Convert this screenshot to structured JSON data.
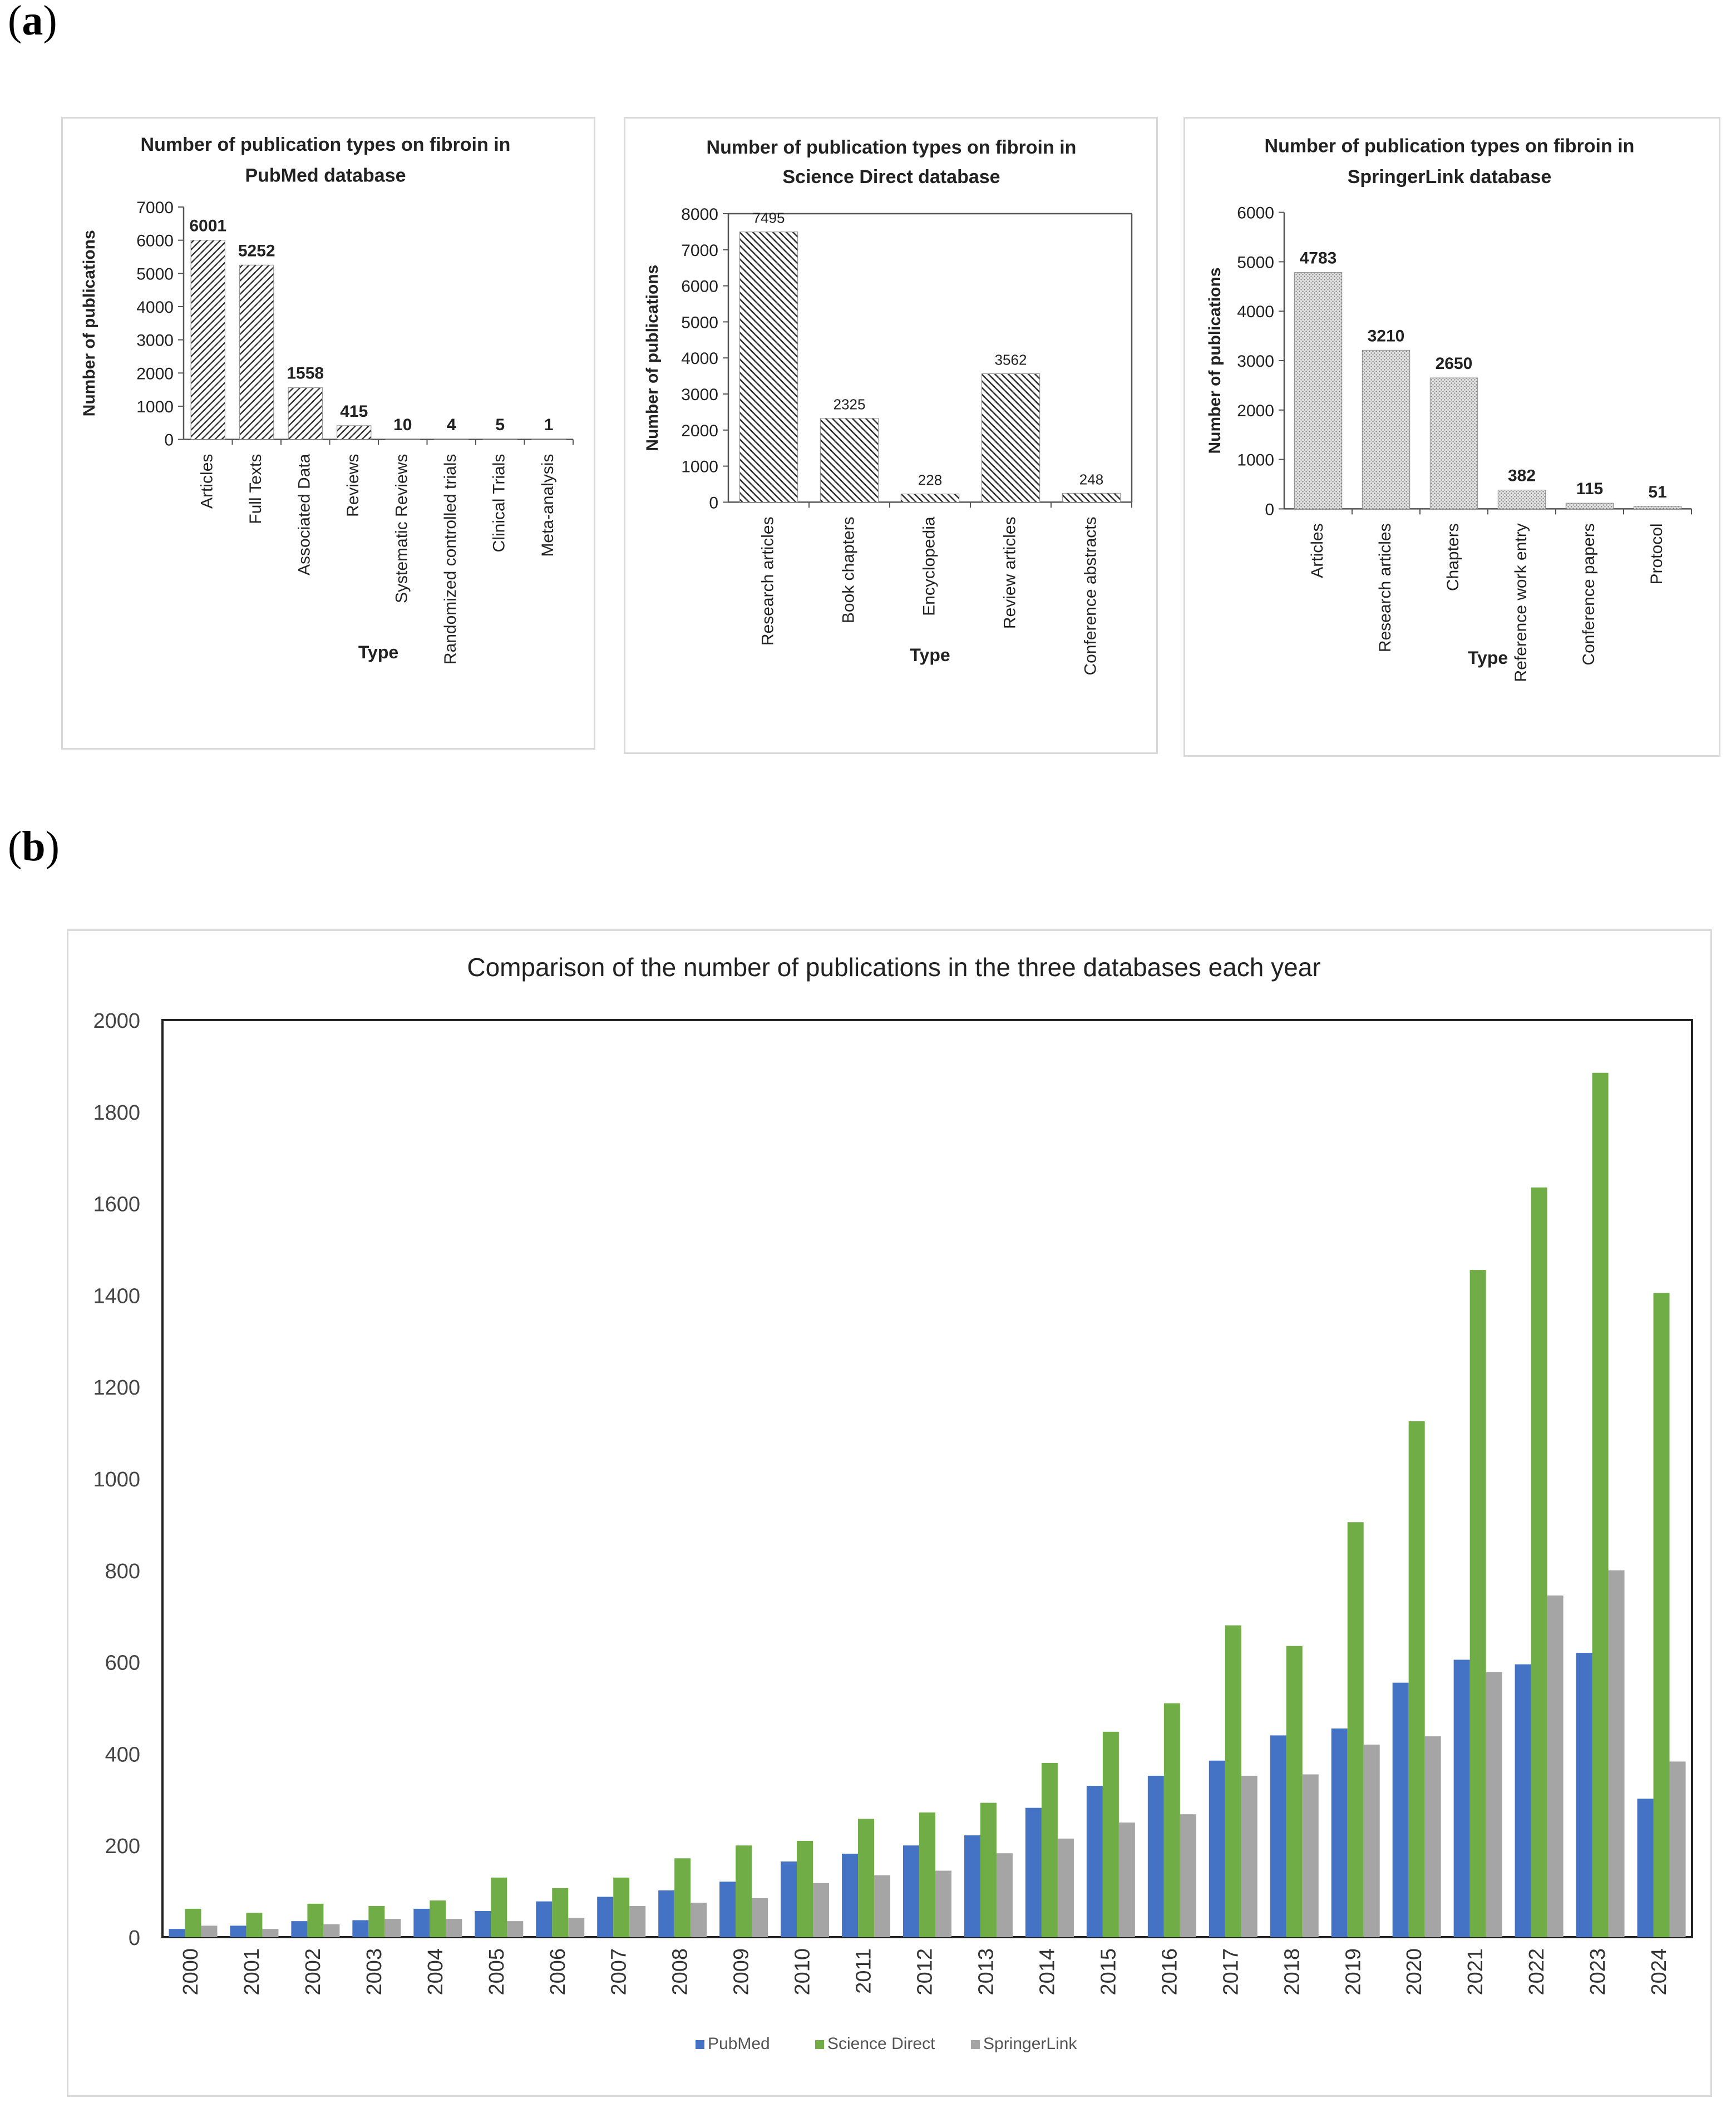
{
  "panels": {
    "a": {
      "open": "(",
      "letter": "a",
      "close": ")"
    },
    "b": {
      "open": "(",
      "letter": "b",
      "close": ")"
    }
  },
  "chart_data": [
    {
      "type": "bar",
      "title": [
        "Number of publication types on fibroin in",
        "PubMed database"
      ],
      "xlabel": "Type",
      "ylabel": "Number of publications",
      "ylim": [
        0,
        7000
      ],
      "yticks": [
        0,
        1000,
        2000,
        3000,
        4000,
        5000,
        6000,
        7000
      ],
      "categories": [
        "Articles",
        "Full Texts",
        "Associated Data",
        "Reviews",
        "Systematic Reviews",
        "Randomized controlled trials",
        "Clinical Trials",
        "Meta-analysis"
      ],
      "values": [
        6001,
        5252,
        1558,
        415,
        10,
        4,
        5,
        1
      ],
      "fill": "hatch-fwd"
    },
    {
      "type": "bar",
      "title": [
        "Number of publication types on fibroin in",
        "Science Direct database"
      ],
      "xlabel": "Type",
      "ylabel": "Number of publications",
      "ylim": [
        0,
        8000
      ],
      "yticks": [
        0,
        1000,
        2000,
        3000,
        4000,
        5000,
        6000,
        7000,
        8000
      ],
      "categories": [
        "Research articles",
        "Book chapters",
        "Encyclopedia",
        "Review articles",
        "Conference abstracts"
      ],
      "values": [
        7495,
        2325,
        228,
        3562,
        248
      ],
      "fill": "hatch-back"
    },
    {
      "type": "bar",
      "title": [
        "Number of publication types on fibroin in",
        "SpringerLink database"
      ],
      "xlabel": "Type",
      "ylabel": "Number of publications",
      "ylim": [
        0,
        6000
      ],
      "yticks": [
        0,
        1000,
        2000,
        3000,
        4000,
        5000,
        6000
      ],
      "categories": [
        "Articles",
        "Research articles",
        "Chapters",
        "Reference work entry",
        "Conference papers",
        "Protocol"
      ],
      "values": [
        4783,
        3210,
        2650,
        382,
        115,
        51
      ],
      "fill": "dots"
    },
    {
      "type": "bar",
      "title": "Comparison of the number of publications in the three databases each year",
      "xlabel": "",
      "ylabel": "",
      "ylim": [
        0,
        2000
      ],
      "yticks": [
        0,
        200,
        400,
        600,
        800,
        1000,
        1200,
        1400,
        1600,
        1800,
        2000
      ],
      "legend_position": "bottom",
      "categories": [
        "2000",
        "2001",
        "2002",
        "2003",
        "2004",
        "2005",
        "2006",
        "2007",
        "2008",
        "2009",
        "2010",
        "2011",
        "2012",
        "2013",
        "2014",
        "2015",
        "2016",
        "2017",
        "2018",
        "2019",
        "2020",
        "2021",
        "2022",
        "2023",
        "2024"
      ],
      "series": [
        {
          "name": "PubMed",
          "color": "#4472c4",
          "values": [
            18,
            25,
            35,
            37,
            62,
            57,
            78,
            88,
            102,
            121,
            165,
            182,
            200,
            222,
            282,
            330,
            352,
            385,
            440,
            455,
            555,
            605,
            595,
            620,
            302
          ]
        },
        {
          "name": "Science Direct",
          "color": "#70ad47",
          "values": [
            62,
            53,
            73,
            68,
            80,
            130,
            107,
            130,
            172,
            200,
            210,
            258,
            272,
            293,
            380,
            448,
            510,
            680,
            635,
            905,
            1125,
            1455,
            1635,
            1885,
            1405
          ]
        },
        {
          "name": "SpringerLink",
          "color": "#a5a5a5",
          "values": [
            25,
            18,
            28,
            40,
            40,
            35,
            42,
            68,
            75,
            85,
            118,
            135,
            145,
            183,
            215,
            250,
            268,
            352,
            355,
            420,
            438,
            578,
            745,
            800,
            383
          ]
        }
      ]
    }
  ]
}
